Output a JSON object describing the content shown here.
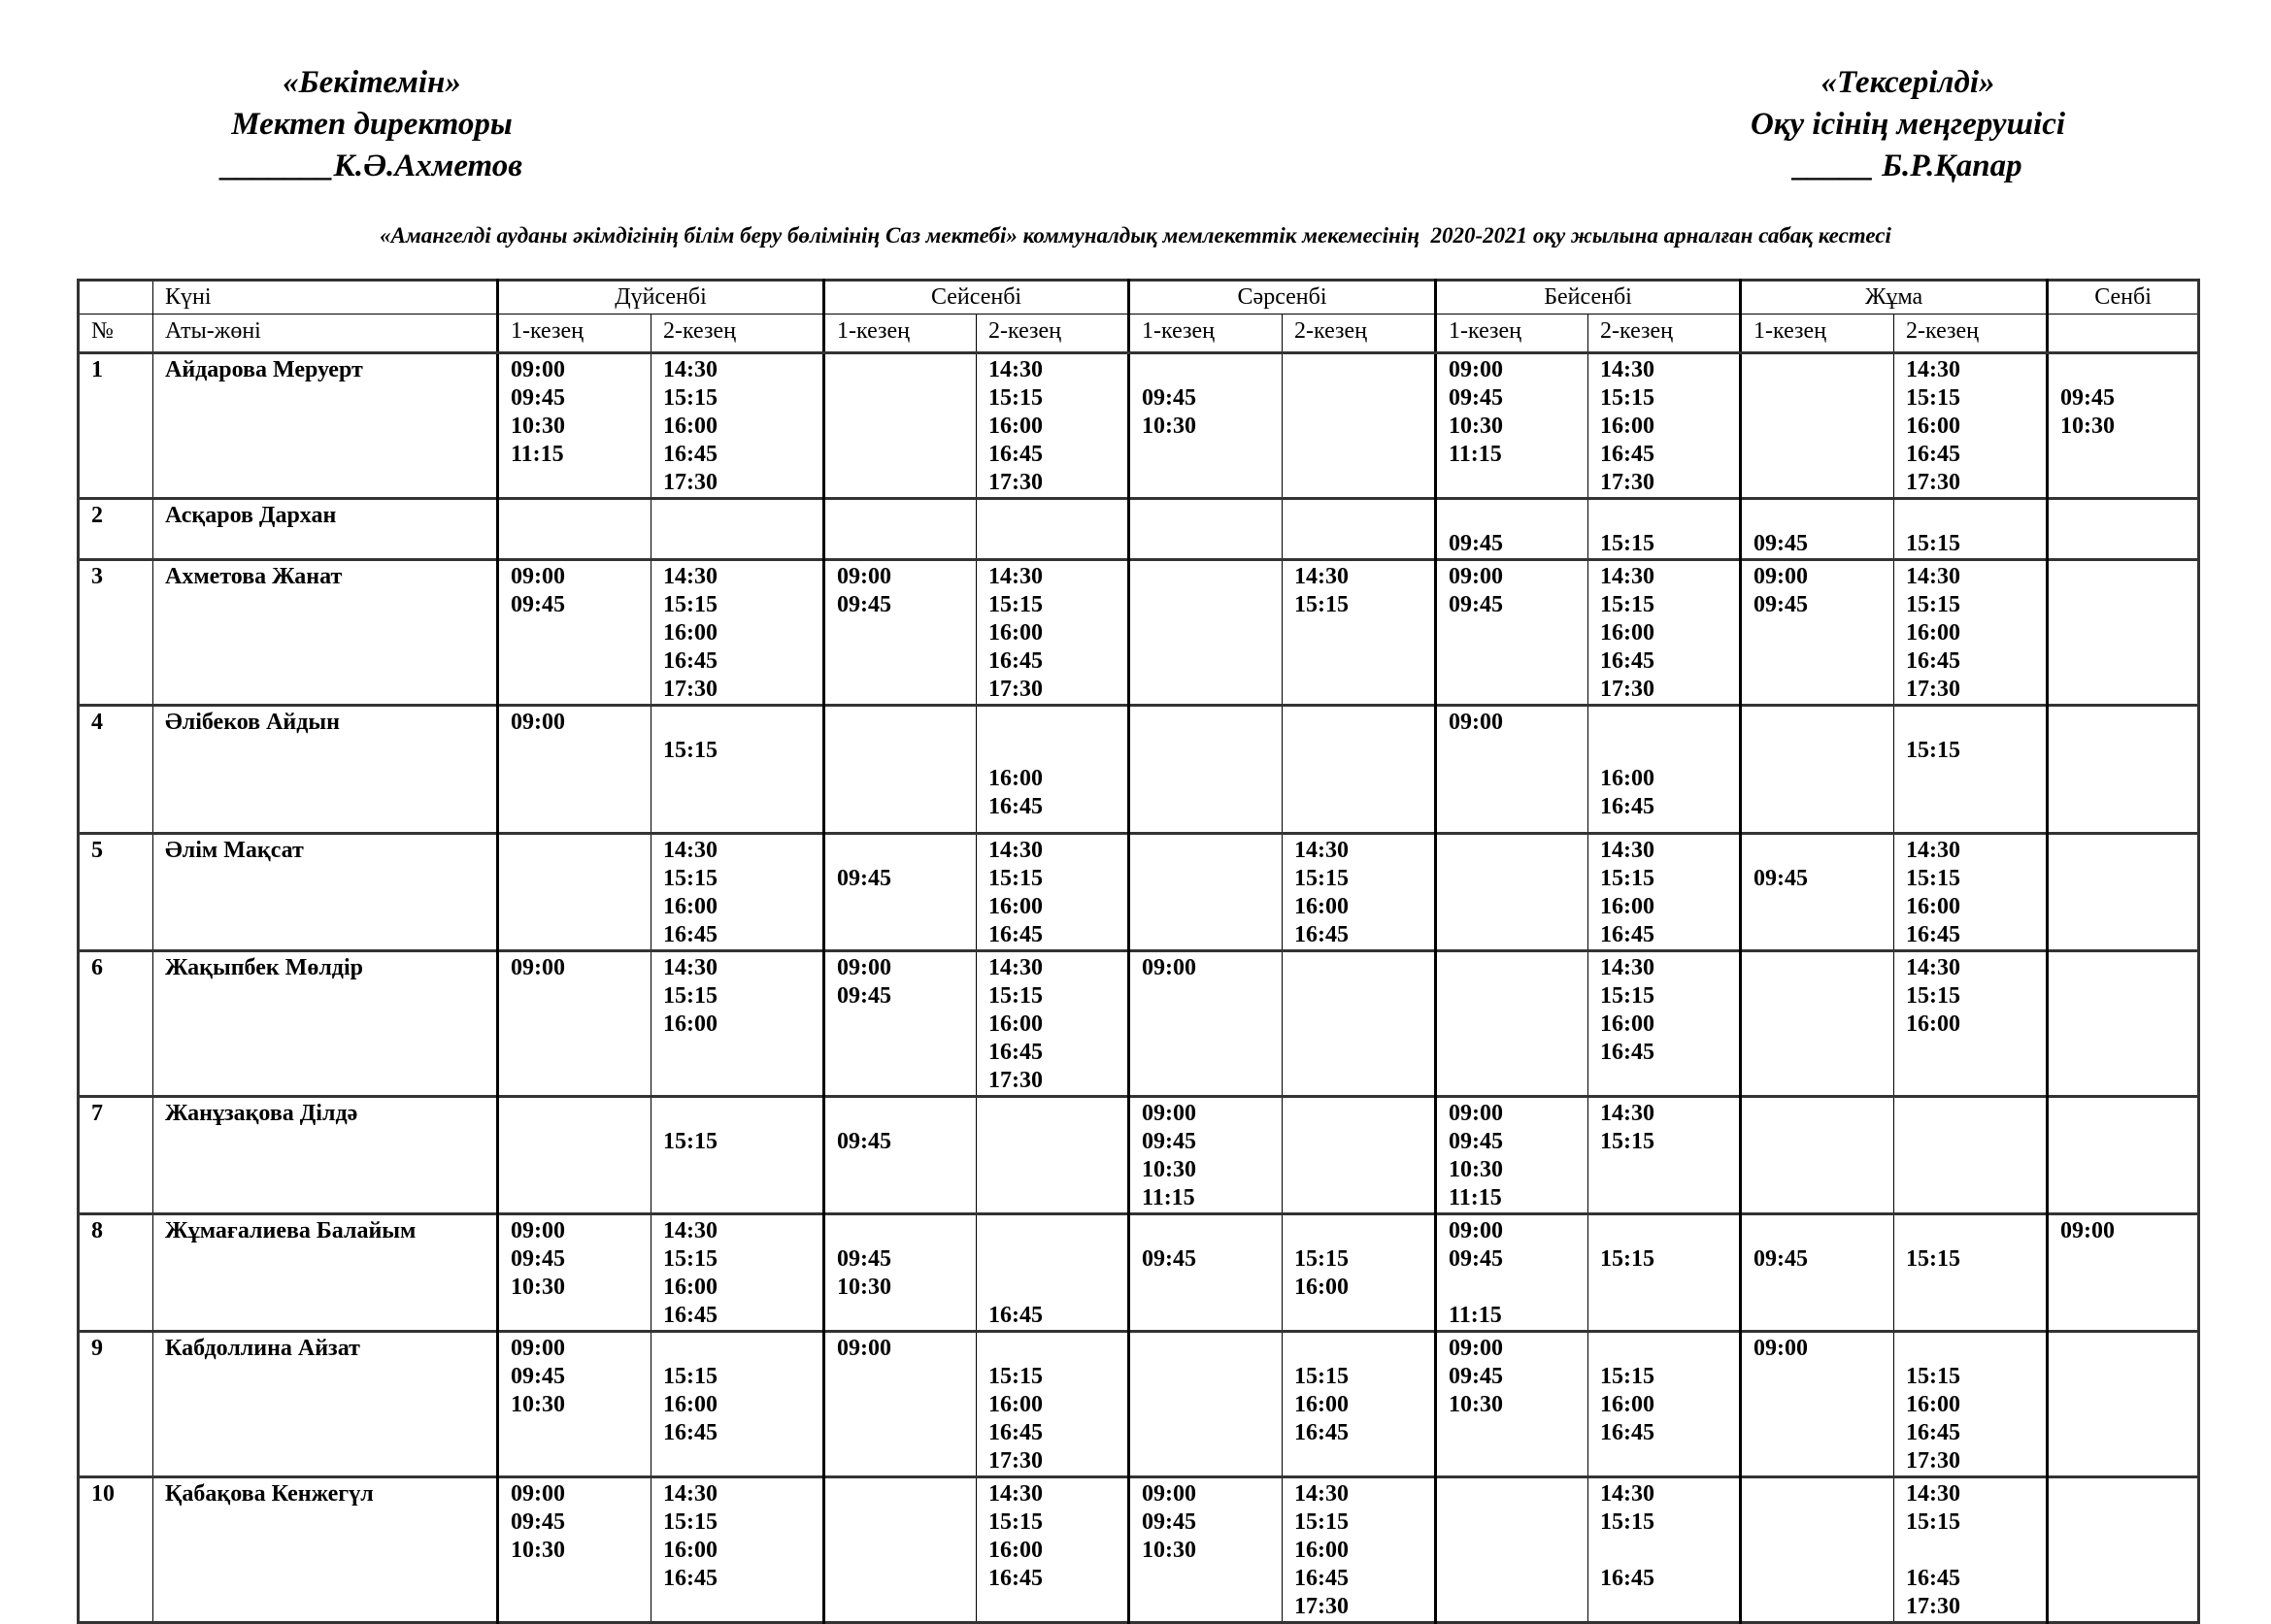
{
  "approval_left": {
    "line1": "«Бекітемін»",
    "line2": "Мектеп директоры",
    "line3": "_______К.Ә.Ахметов"
  },
  "approval_right": {
    "line1": "«Тексерілді»",
    "line2": "Оқу ісінің меңгерушісі",
    "line3": "_____ Б.Р.Қапар"
  },
  "title": "«Амангелді ауданы әкімдігінің білім беру бөлімінің Саз мектебі» коммуналдық мемлекеттік мекемесінің  2020-2021 оқу жылына арналған сабақ кестесі",
  "header": {
    "day_label": "Күні",
    "number_label": "№",
    "name_label": "Аты-жөні",
    "days": [
      "Дүйсенбі",
      "Сейсенбі",
      "Сәрсенбі",
      "Бейсенбі",
      "Жұма",
      "Сенбі"
    ],
    "period1": "1-кезең",
    "period2": "2-кезең"
  },
  "rows": [
    {
      "no": "1",
      "name": "Айдарова Меруерт",
      "cells": [
        [
          "09:00",
          "09:45",
          "10:30",
          "11:15"
        ],
        [
          "14:30",
          "15:15",
          "16:00",
          "16:45",
          "17:30"
        ],
        [],
        [
          "14:30",
          "15:15",
          "16:00",
          "16:45",
          "17:30"
        ],
        [
          "",
          "09:45",
          "10:30"
        ],
        [],
        [
          "09:00",
          "09:45",
          "10:30",
          "11:15"
        ],
        [
          "14:30",
          "15:15",
          "16:00",
          "16:45",
          "17:30"
        ],
        [],
        [
          "14:30",
          "15:15",
          "16:00",
          "16:45",
          "17:30"
        ],
        [
          "",
          "09:45",
          "10:30"
        ]
      ]
    },
    {
      "no": "2",
      "name": "Асқаров Дархан",
      "cells": [
        [],
        [],
        [],
        [],
        [],
        [],
        [
          "",
          "09:45"
        ],
        [
          "",
          "15:15"
        ],
        [
          "",
          "09:45"
        ],
        [
          "",
          "15:15"
        ],
        []
      ]
    },
    {
      "no": "3",
      "name": "Ахметова Жанат",
      "cells": [
        [
          "09:00",
          "09:45"
        ],
        [
          "14:30",
          "15:15",
          "16:00",
          "16:45",
          "17:30"
        ],
        [
          "09:00",
          "09:45"
        ],
        [
          "14:30",
          "15:15",
          "16:00",
          "16:45",
          "17:30"
        ],
        [],
        [
          "14:30",
          "15:15"
        ],
        [
          "09:00",
          "09:45"
        ],
        [
          "14:30",
          "15:15",
          "16:00",
          "16:45",
          "17:30"
        ],
        [
          "09:00",
          "09:45"
        ],
        [
          "14:30",
          "15:15",
          "16:00",
          "16:45",
          "17:30"
        ],
        []
      ]
    },
    {
      "no": "4",
      "name": "Әлібеков Айдын",
      "cells": [
        [
          "09:00"
        ],
        [
          "",
          "15:15"
        ],
        [],
        [
          "",
          "",
          "16:00",
          "16:45"
        ],
        [],
        [],
        [
          "09:00"
        ],
        [
          "",
          "",
          "16:00",
          "16:45"
        ],
        [],
        [
          "",
          "15:15"
        ],
        []
      ]
    },
    {
      "no": "5",
      "name": "Әлім Мақсат",
      "cells": [
        [],
        [
          "14:30",
          "15:15",
          "16:00",
          "16:45"
        ],
        [
          "",
          "09:45"
        ],
        [
          "14:30",
          "15:15",
          "16:00",
          "16:45"
        ],
        [],
        [
          "14:30",
          "15:15",
          "16:00",
          "16:45"
        ],
        [],
        [
          "14:30",
          "15:15",
          "16:00",
          "16:45"
        ],
        [
          "",
          "09:45"
        ],
        [
          "14:30",
          "15:15",
          "16:00",
          "16:45"
        ],
        []
      ]
    },
    {
      "no": "6",
      "name": "Жақыпбек Мөлдір",
      "cells": [
        [
          "09:00"
        ],
        [
          "14:30",
          "15:15",
          "16:00"
        ],
        [
          "09:00",
          "09:45"
        ],
        [
          "14:30",
          "15:15",
          "16:00",
          "16:45",
          "17:30"
        ],
        [
          "09:00"
        ],
        [],
        [],
        [
          "14:30",
          "15:15",
          "16:00",
          "16:45"
        ],
        [],
        [
          "14:30",
          "15:15",
          "16:00"
        ],
        []
      ]
    },
    {
      "no": "7",
      "name": "Жанұзақова Ділдә",
      "cells": [
        [],
        [
          "",
          "15:15"
        ],
        [
          "",
          "09:45"
        ],
        [],
        [
          "09:00",
          "09:45",
          "10:30",
          "11:15"
        ],
        [],
        [
          "09:00",
          "09:45",
          "10:30",
          "11:15"
        ],
        [
          "14:30",
          "15:15"
        ],
        [],
        [],
        []
      ]
    },
    {
      "no": "8",
      "name": "Жұмағалиева Балайым",
      "cells": [
        [
          "09:00",
          "09:45",
          "10:30"
        ],
        [
          "14:30",
          "15:15",
          "16:00",
          "16:45"
        ],
        [
          "",
          "09:45",
          "10:30"
        ],
        [
          "",
          "",
          "",
          "16:45"
        ],
        [
          "",
          "09:45"
        ],
        [
          "",
          "15:15",
          "16:00"
        ],
        [
          "09:00",
          "09:45",
          "",
          "11:15"
        ],
        [
          "",
          "15:15"
        ],
        [
          "",
          "09:45"
        ],
        [
          "",
          "15:15"
        ],
        [
          "09:00"
        ]
      ]
    },
    {
      "no": "9",
      "name": "Кабдоллина Айзат",
      "cells": [
        [
          "09:00",
          "09:45",
          "10:30"
        ],
        [
          "",
          "15:15",
          "16:00",
          "16:45"
        ],
        [
          "09:00"
        ],
        [
          "",
          "15:15",
          "16:00",
          "16:45",
          "17:30"
        ],
        [],
        [
          "",
          "15:15",
          "16:00",
          "16:45"
        ],
        [
          "09:00",
          "09:45",
          "10:30"
        ],
        [
          "",
          "15:15",
          "16:00",
          "16:45"
        ],
        [
          "09:00"
        ],
        [
          "",
          "15:15",
          "16:00",
          "16:45",
          "17:30"
        ],
        []
      ]
    },
    {
      "no": "10",
      "name": "Қабақова Кенжегүл",
      "cells": [
        [
          "09:00",
          "09:45",
          "10:30"
        ],
        [
          "14:30",
          "15:15",
          "16:00",
          "16:45"
        ],
        [],
        [
          "14:30",
          "15:15",
          "16:00",
          "16:45"
        ],
        [
          "09:00",
          "09:45",
          "10:30"
        ],
        [
          "14:30",
          "15:15",
          "16:00",
          "16:45",
          "17:30"
        ],
        [],
        [
          "14:30",
          "15:15",
          "",
          "16:45"
        ],
        [],
        [
          "14:30",
          "15:15",
          "",
          "16:45",
          "17:30"
        ],
        []
      ]
    }
  ]
}
